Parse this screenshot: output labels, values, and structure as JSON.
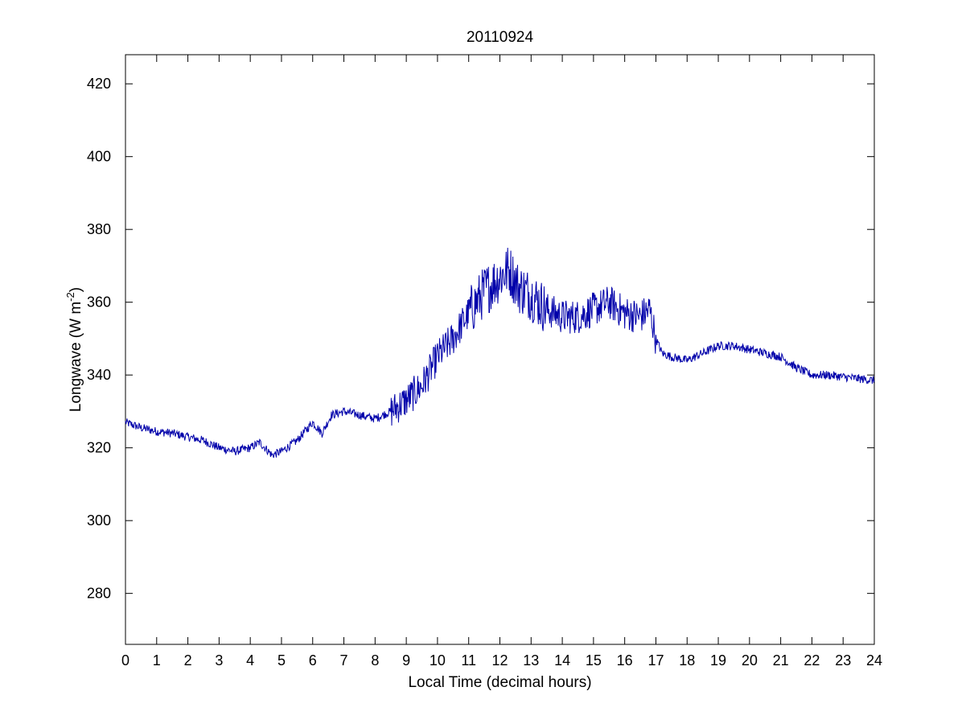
{
  "chart_data": {
    "type": "line",
    "title": "20110924",
    "xlabel": "Local Time (decimal hours)",
    "ylabel_main": "Longwave (W m",
    "ylabel_sup": "-2",
    "ylabel_close": ")",
    "xlim": [
      0,
      24
    ],
    "ylim": [
      266,
      428
    ],
    "xticks": [
      0,
      1,
      2,
      3,
      4,
      5,
      6,
      7,
      8,
      9,
      10,
      11,
      12,
      13,
      14,
      15,
      16,
      17,
      18,
      19,
      20,
      21,
      22,
      23,
      24
    ],
    "yticks": [
      280,
      300,
      320,
      340,
      360,
      380,
      400,
      420
    ],
    "grid": false,
    "legend": "none",
    "series": [
      {
        "color": "#0000aa",
        "noise": 1.2,
        "x": [
          0,
          0.5,
          1,
          1.5,
          2,
          2.5,
          3,
          3.5,
          4,
          4.3,
          4.7,
          5,
          5.5,
          6,
          6.3,
          6.6,
          7,
          7.5,
          8,
          8.5,
          9,
          9.5,
          10,
          10.5,
          11,
          11.5,
          12,
          12.3,
          12.6,
          13,
          13.5,
          14,
          14.5,
          15,
          15.5,
          16,
          16.5,
          16.8,
          17,
          17.2,
          17.5,
          18,
          18.5,
          19,
          19.5,
          20,
          20.5,
          21,
          21.5,
          22,
          22.5,
          23,
          23.5,
          24
        ],
        "y": [
          327,
          325.5,
          324.5,
          324,
          323,
          322,
          320,
          319,
          320,
          321.5,
          318,
          319,
          322,
          327,
          324,
          329,
          330,
          329,
          328,
          330,
          333,
          337,
          345,
          350,
          357,
          363,
          367,
          369,
          364,
          362,
          358,
          356,
          356,
          358,
          360,
          357,
          356,
          358,
          350,
          346,
          345,
          344,
          346,
          348,
          348,
          347,
          346,
          345,
          342,
          340,
          340,
          339.5,
          339,
          338.5
        ]
      }
    ]
  }
}
